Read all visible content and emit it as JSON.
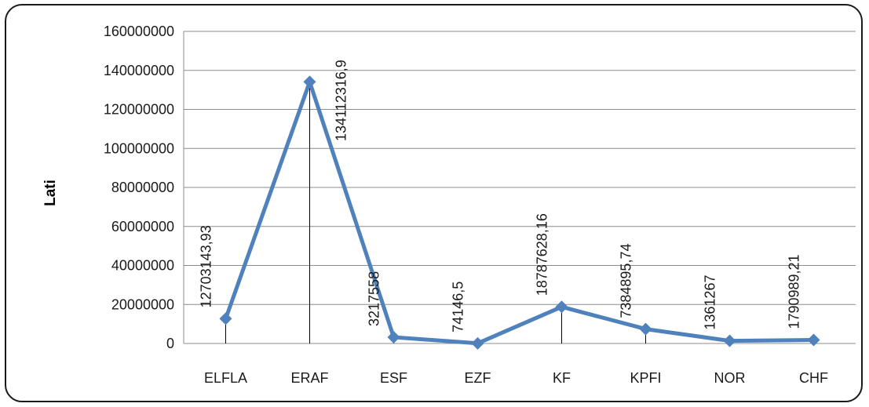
{
  "chart_data": {
    "type": "line",
    "ylabel": "Lati",
    "xlabel": "",
    "title": "",
    "categories": [
      "ELFLA",
      "ERAF",
      "ESF",
      "EZF",
      "KF",
      "KPFI",
      "NOR",
      "CHF"
    ],
    "values": [
      12703143.93,
      134112316.9,
      3217558,
      74146.5,
      18787628.16,
      7384895.74,
      1361267,
      1790989.21
    ],
    "data_labels": [
      "12703143,93",
      "134112316,9",
      "3217558",
      "74146,5",
      "18787628,16",
      "7384895,74",
      "1361267",
      "1790989,21"
    ],
    "ylim": [
      0,
      160000000
    ],
    "yticks": [
      0,
      20000000,
      40000000,
      60000000,
      80000000,
      100000000,
      120000000,
      140000000,
      160000000
    ],
    "ytick_labels": [
      "0",
      "20000000",
      "40000000",
      "60000000",
      "80000000",
      "100000000",
      "120000000",
      "140000000",
      "160000000"
    ],
    "grid": "horizontal",
    "drop_lines": true,
    "series_color": "#4f81bd",
    "grid_color": "#8c8c8c",
    "marker": "diamond"
  }
}
